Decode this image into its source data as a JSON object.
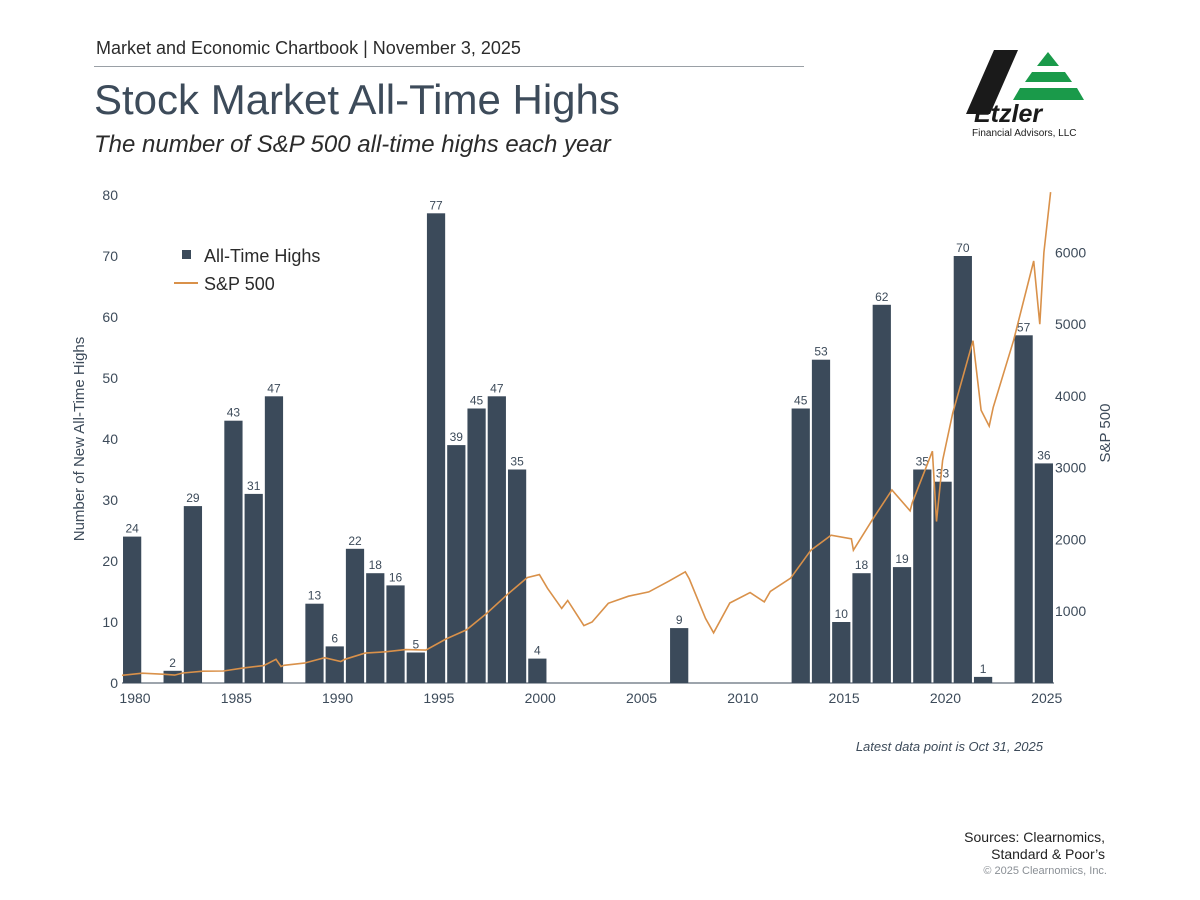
{
  "header": {
    "chartbook_line": "Market and Economic Chartbook | November 3, 2025",
    "title": "Stock Market All-Time Highs",
    "subtitle": "The number of S&P 500 all-time highs each year"
  },
  "logo": {
    "brand": "Etzler",
    "tagline": "Financial Advisors, LLC",
    "colors": {
      "dark": "#1a1a1a",
      "green": "#1a9a4a"
    }
  },
  "footer": {
    "latest_note": "Latest data point is Oct 31, 2025",
    "sources_line1": "Sources: Clearnomics,",
    "sources_line2": "Standard & Poor’s",
    "copyright": "© 2025 Clearnomics, Inc."
  },
  "chart_data": {
    "type": "bar",
    "years": [
      1980,
      1981,
      1982,
      1983,
      1984,
      1985,
      1986,
      1987,
      1988,
      1989,
      1990,
      1991,
      1992,
      1993,
      1994,
      1995,
      1996,
      1997,
      1998,
      1999,
      2000,
      2001,
      2002,
      2003,
      2004,
      2005,
      2006,
      2007,
      2008,
      2009,
      2010,
      2011,
      2012,
      2013,
      2014,
      2015,
      2016,
      2017,
      2018,
      2019,
      2020,
      2021,
      2022,
      2023,
      2024,
      2025
    ],
    "series": [
      {
        "name": "All-Time Highs",
        "color": "#3b4a5a",
        "values": [
          24,
          0,
          2,
          29,
          0,
          43,
          31,
          47,
          0,
          13,
          6,
          22,
          18,
          16,
          5,
          77,
          39,
          45,
          47,
          35,
          4,
          0,
          0,
          0,
          0,
          0,
          0,
          9,
          0,
          0,
          0,
          0,
          0,
          45,
          53,
          10,
          18,
          62,
          19,
          35,
          33,
          70,
          1,
          0,
          57,
          36
        ]
      },
      {
        "name": "S&P 500",
        "color": "#d9914a",
        "axis": "right",
        "points": [
          [
            1980.0,
            107
          ],
          [
            1981.0,
            136
          ],
          [
            1982.0,
            122
          ],
          [
            1982.6,
            110
          ],
          [
            1983.0,
            140
          ],
          [
            1984.0,
            165
          ],
          [
            1985.0,
            167
          ],
          [
            1986.0,
            211
          ],
          [
            1987.0,
            242
          ],
          [
            1987.6,
            330
          ],
          [
            1987.85,
            230
          ],
          [
            1988.0,
            247
          ],
          [
            1989.0,
            277
          ],
          [
            1990.0,
            353
          ],
          [
            1990.8,
            300
          ],
          [
            1991.0,
            330
          ],
          [
            1992.0,
            417
          ],
          [
            1993.0,
            435
          ],
          [
            1994.0,
            466
          ],
          [
            1995.0,
            459
          ],
          [
            1996.0,
            615
          ],
          [
            1997.0,
            740
          ],
          [
            1998.0,
            970
          ],
          [
            1999.0,
            1229
          ],
          [
            2000.0,
            1469
          ],
          [
            2000.6,
            1510
          ],
          [
            2001.0,
            1320
          ],
          [
            2001.7,
            1040
          ],
          [
            2002.0,
            1150
          ],
          [
            2002.8,
            800
          ],
          [
            2003.2,
            850
          ],
          [
            2004.0,
            1110
          ],
          [
            2005.0,
            1210
          ],
          [
            2006.0,
            1270
          ],
          [
            2007.0,
            1420
          ],
          [
            2007.8,
            1550
          ],
          [
            2008.0,
            1450
          ],
          [
            2008.8,
            900
          ],
          [
            2009.2,
            700
          ],
          [
            2010.0,
            1115
          ],
          [
            2011.0,
            1260
          ],
          [
            2011.7,
            1130
          ],
          [
            2012.0,
            1275
          ],
          [
            2013.0,
            1460
          ],
          [
            2014.0,
            1850
          ],
          [
            2015.0,
            2060
          ],
          [
            2016.0,
            2010
          ],
          [
            2016.1,
            1850
          ],
          [
            2017.0,
            2260
          ],
          [
            2018.0,
            2690
          ],
          [
            2018.9,
            2400
          ],
          [
            2019.0,
            2510
          ],
          [
            2020.0,
            3230
          ],
          [
            2020.2,
            2250
          ],
          [
            2020.5,
            3100
          ],
          [
            2021.0,
            3760
          ],
          [
            2022.0,
            4770
          ],
          [
            2022.4,
            3800
          ],
          [
            2022.8,
            3580
          ],
          [
            2023.0,
            3840
          ],
          [
            2024.0,
            4770
          ],
          [
            2025.0,
            5880
          ],
          [
            2025.3,
            5000
          ],
          [
            2025.5,
            6000
          ],
          [
            2025.83,
            6840
          ]
        ]
      }
    ],
    "title": "Stock Market All-Time Highs",
    "ylabel": "Number of New All-Time Highs",
    "y2label": "S&P 500",
    "ylim": [
      0,
      80
    ],
    "y2lim": [
      0,
      6800
    ],
    "y_ticks": [
      0,
      10,
      20,
      30,
      40,
      50,
      60,
      70,
      80
    ],
    "y2_ticks": [
      1000,
      2000,
      3000,
      4000,
      5000,
      6000
    ],
    "x_ticks": [
      1980,
      1985,
      1990,
      1995,
      2000,
      2005,
      2010,
      2015,
      2020,
      2025
    ],
    "legend": [
      "All-Time Highs",
      "S&P 500"
    ],
    "legend_position": "top-left",
    "grid": false
  }
}
